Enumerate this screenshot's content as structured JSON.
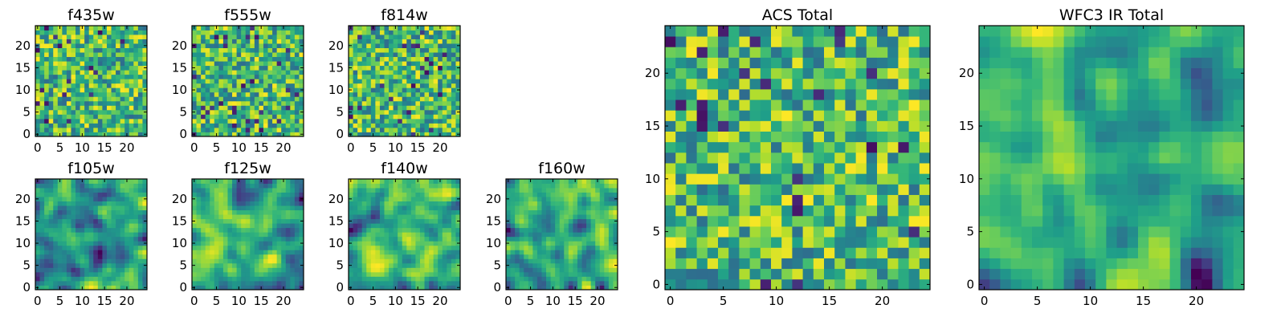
{
  "chart_data": [
    {
      "id": "f435w",
      "type": "heatmap",
      "title": "f435w",
      "nx": 25,
      "ny": 25,
      "xlim": [
        0,
        25
      ],
      "ylim": [
        0,
        25
      ],
      "xticks": [
        0,
        5,
        10,
        15,
        20
      ],
      "yticks": [
        0,
        5,
        10,
        15,
        20
      ],
      "xtick_labels": [
        "0",
        "5",
        "10",
        "15",
        "20"
      ],
      "ytick_labels": [
        "0",
        "5",
        "10",
        "15",
        "20"
      ],
      "colormap": "viridis",
      "texture": "noise",
      "seed": 11
    },
    {
      "id": "f555w",
      "type": "heatmap",
      "title": "f555w",
      "nx": 25,
      "ny": 25,
      "xlim": [
        0,
        25
      ],
      "ylim": [
        0,
        25
      ],
      "xticks": [
        0,
        5,
        10,
        15,
        20
      ],
      "yticks": [
        0,
        5,
        10,
        15,
        20
      ],
      "xtick_labels": [
        "0",
        "5",
        "10",
        "15",
        "20"
      ],
      "ytick_labels": [
        "0",
        "5",
        "10",
        "15",
        "20"
      ],
      "colormap": "viridis",
      "texture": "noise",
      "seed": 23
    },
    {
      "id": "f814w",
      "type": "heatmap",
      "title": "f814w",
      "nx": 25,
      "ny": 25,
      "xlim": [
        0,
        25
      ],
      "ylim": [
        0,
        25
      ],
      "xticks": [
        0,
        5,
        10,
        15,
        20
      ],
      "yticks": [
        0,
        5,
        10,
        15,
        20
      ],
      "xtick_labels": [
        "0",
        "5",
        "10",
        "15",
        "20"
      ],
      "ytick_labels": [
        "0",
        "5",
        "10",
        "15",
        "20"
      ],
      "colormap": "viridis",
      "texture": "noise",
      "seed": 37
    },
    {
      "id": "f105w",
      "type": "heatmap",
      "title": "f105w",
      "nx": 25,
      "ny": 25,
      "xlim": [
        0,
        25
      ],
      "ylim": [
        0,
        25
      ],
      "xticks": [
        0,
        5,
        10,
        15,
        20
      ],
      "yticks": [
        0,
        5,
        10,
        15,
        20
      ],
      "xtick_labels": [
        "0",
        "5",
        "10",
        "15",
        "20"
      ],
      "ytick_labels": [
        "0",
        "5",
        "10",
        "15",
        "20"
      ],
      "colormap": "viridis",
      "texture": "smooth",
      "seed": 41
    },
    {
      "id": "f125w",
      "type": "heatmap",
      "title": "f125w",
      "nx": 25,
      "ny": 25,
      "xlim": [
        0,
        25
      ],
      "ylim": [
        0,
        25
      ],
      "xticks": [
        0,
        5,
        10,
        15,
        20
      ],
      "yticks": [
        0,
        5,
        10,
        15,
        20
      ],
      "xtick_labels": [
        "0",
        "5",
        "10",
        "15",
        "20"
      ],
      "ytick_labels": [
        "0",
        "5",
        "10",
        "15",
        "20"
      ],
      "colormap": "viridis",
      "texture": "smooth",
      "seed": 53
    },
    {
      "id": "f140w",
      "type": "heatmap",
      "title": "f140w",
      "nx": 25,
      "ny": 25,
      "xlim": [
        0,
        25
      ],
      "ylim": [
        0,
        25
      ],
      "xticks": [
        0,
        5,
        10,
        15,
        20
      ],
      "yticks": [
        0,
        5,
        10,
        15,
        20
      ],
      "xtick_labels": [
        "0",
        "5",
        "10",
        "15",
        "20"
      ],
      "ytick_labels": [
        "0",
        "5",
        "10",
        "15",
        "20"
      ],
      "colormap": "viridis",
      "texture": "smooth",
      "seed": 67
    },
    {
      "id": "f160w",
      "type": "heatmap",
      "title": "f160w",
      "nx": 25,
      "ny": 25,
      "xlim": [
        0,
        25
      ],
      "ylim": [
        0,
        25
      ],
      "xticks": [
        0,
        5,
        10,
        15,
        20
      ],
      "yticks": [
        0,
        5,
        10,
        15,
        20
      ],
      "xtick_labels": [
        "0",
        "5",
        "10",
        "15",
        "20"
      ],
      "ytick_labels": [
        "0",
        "5",
        "10",
        "15",
        "20"
      ],
      "colormap": "viridis",
      "texture": "smooth",
      "seed": 79
    },
    {
      "id": "acs-total",
      "type": "heatmap",
      "title": "ACS Total",
      "nx": 25,
      "ny": 25,
      "xlim": [
        0,
        25
      ],
      "ylim": [
        0,
        25
      ],
      "xticks": [
        0,
        5,
        10,
        15,
        20
      ],
      "yticks": [
        0,
        5,
        10,
        15,
        20
      ],
      "xtick_labels": [
        "0",
        "5",
        "10",
        "15",
        "20"
      ],
      "ytick_labels": [
        "0",
        "5",
        "10",
        "15",
        "20"
      ],
      "colormap": "viridis",
      "texture": "noise",
      "seed": 97
    },
    {
      "id": "wfc3-ir-total",
      "type": "heatmap",
      "title": "WFC3 IR Total",
      "nx": 25,
      "ny": 25,
      "xlim": [
        0,
        25
      ],
      "ylim": [
        0,
        25
      ],
      "xticks": [
        0,
        5,
        10,
        15,
        20
      ],
      "yticks": [
        0,
        5,
        10,
        15,
        20
      ],
      "xtick_labels": [
        "0",
        "5",
        "10",
        "15",
        "20"
      ],
      "ytick_labels": [
        "0",
        "5",
        "10",
        "15",
        "20"
      ],
      "colormap": "viridis",
      "texture": "smooth",
      "seed": 131
    }
  ]
}
